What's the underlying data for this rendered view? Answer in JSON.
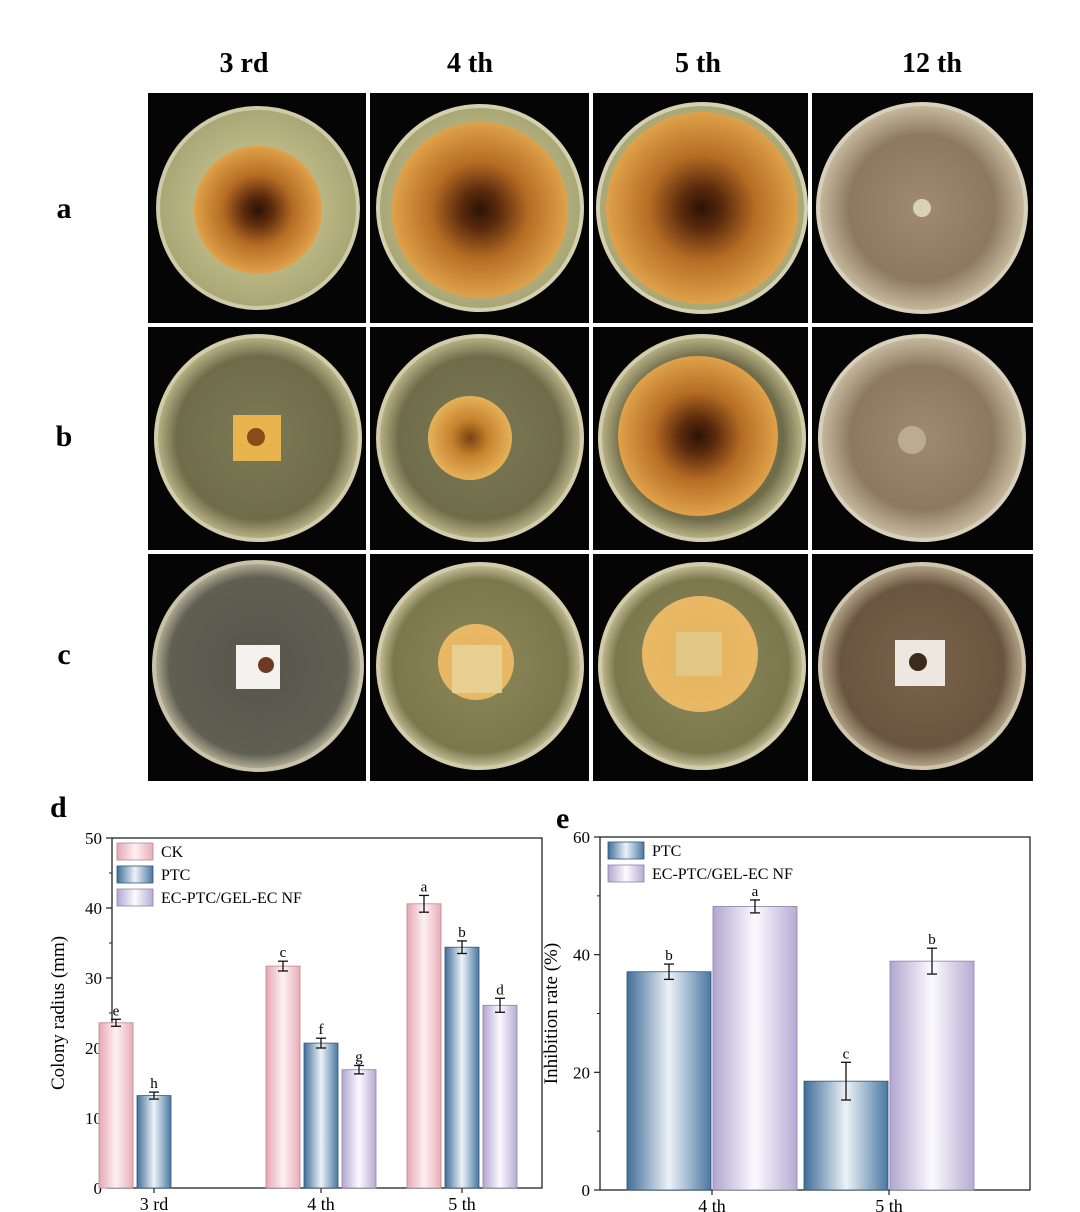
{
  "figure": {
    "day_labels": [
      "3 rd",
      "4 th",
      "5 th",
      "12 th"
    ],
    "row_labels": [
      "a",
      "b",
      "c"
    ]
  },
  "chart_data": [
    {
      "type": "bar",
      "panel_label": "d",
      "title": "",
      "xlabel": "",
      "ylabel": "Colony radius (mm)",
      "ylim": [
        0,
        50
      ],
      "yticks": [
        0,
        10,
        20,
        30,
        40,
        50
      ],
      "categories": [
        "3 rd",
        "4 th",
        "5 th"
      ],
      "series": [
        {
          "name": "CK",
          "color": "#f3c4cc",
          "values": [
            23.6,
            31.7,
            40.6
          ],
          "errors": [
            0.5,
            0.7,
            1.2
          ],
          "letters": [
            "e",
            "c",
            "a"
          ]
        },
        {
          "name": "PTC",
          "color": "#5e86b0",
          "values": [
            13.2,
            20.7,
            34.4
          ],
          "errors": [
            0.5,
            0.7,
            0.9
          ],
          "letters": [
            "h",
            "f",
            "b"
          ]
        },
        {
          "name": "EC-PTC/GEL-EC NF",
          "color": "#c7bedc",
          "values": [
            null,
            16.9,
            26.1
          ],
          "errors": [
            null,
            0.6,
            1.0
          ],
          "letters": [
            null,
            "g",
            "d"
          ]
        }
      ],
      "legend": "top-left",
      "grid": false
    },
    {
      "type": "bar",
      "panel_label": "e",
      "title": "",
      "xlabel": "",
      "ylabel": "Inhibition rate (%)",
      "ylim": [
        0,
        60
      ],
      "yticks": [
        0,
        20,
        40,
        60
      ],
      "categories": [
        "4 th",
        "5 th"
      ],
      "series": [
        {
          "name": "PTC",
          "color": "#5e86b0",
          "values": [
            37.1,
            18.5
          ],
          "errors": [
            1.3,
            3.2
          ],
          "letters": [
            "b",
            "c"
          ]
        },
        {
          "name": "EC-PTC/GEL-EC NF",
          "color": "#c7bedc",
          "values": [
            48.2,
            38.9
          ],
          "errors": [
            1.1,
            2.2
          ],
          "letters": [
            "a",
            "b"
          ]
        }
      ],
      "legend": "top-left",
      "grid": false
    }
  ]
}
